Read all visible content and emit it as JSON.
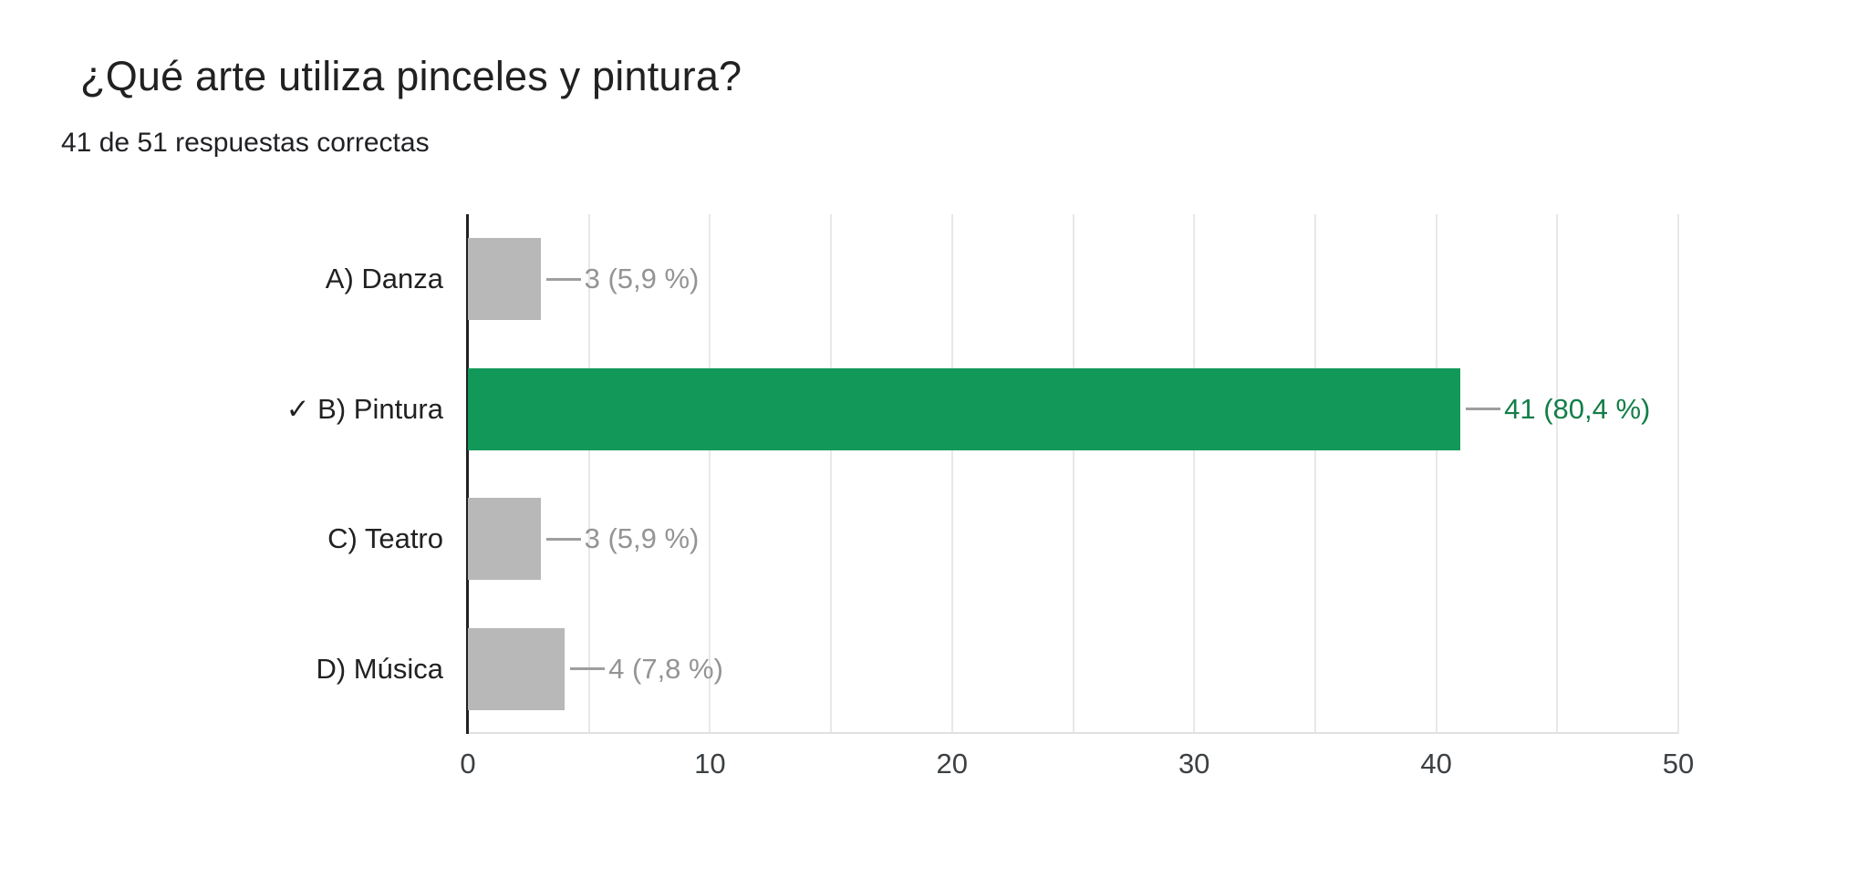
{
  "header": {
    "title": "¿Qué arte utiliza pinceles y pintura?",
    "subtitle": "41 de 51 respuestas correctas"
  },
  "chart_data": {
    "type": "bar",
    "orientation": "horizontal",
    "title": "¿Qué arte utiliza pinceles y pintura?",
    "subtitle": "41 de 51 respuestas correctas",
    "categories": [
      "A) Danza",
      "B) Pintura",
      "C) Teatro",
      "D) Música"
    ],
    "values": [
      3,
      41,
      3,
      4
    ],
    "value_labels": [
      "3 (5,9 %)",
      "41 (80,4 %)",
      "3 (5,9 %)",
      "4 (7,8 %)"
    ],
    "correct_index": 1,
    "correct_mark": "✓",
    "xlim": [
      0,
      50
    ],
    "xticks": [
      0,
      10,
      20,
      30,
      40,
      50
    ],
    "grid_step": 5,
    "grid": "vertical",
    "legend": "none",
    "colors": {
      "correct_bar": "#12995a",
      "correct_value_label": "#137e48",
      "incorrect_bar": "#b8b8b8",
      "incorrect_value_label": "#949494",
      "connector": "#9e9e9e",
      "axis_line": "#212121",
      "gridline": "#e8e8e8",
      "baseline": "#e0e0e0"
    }
  }
}
